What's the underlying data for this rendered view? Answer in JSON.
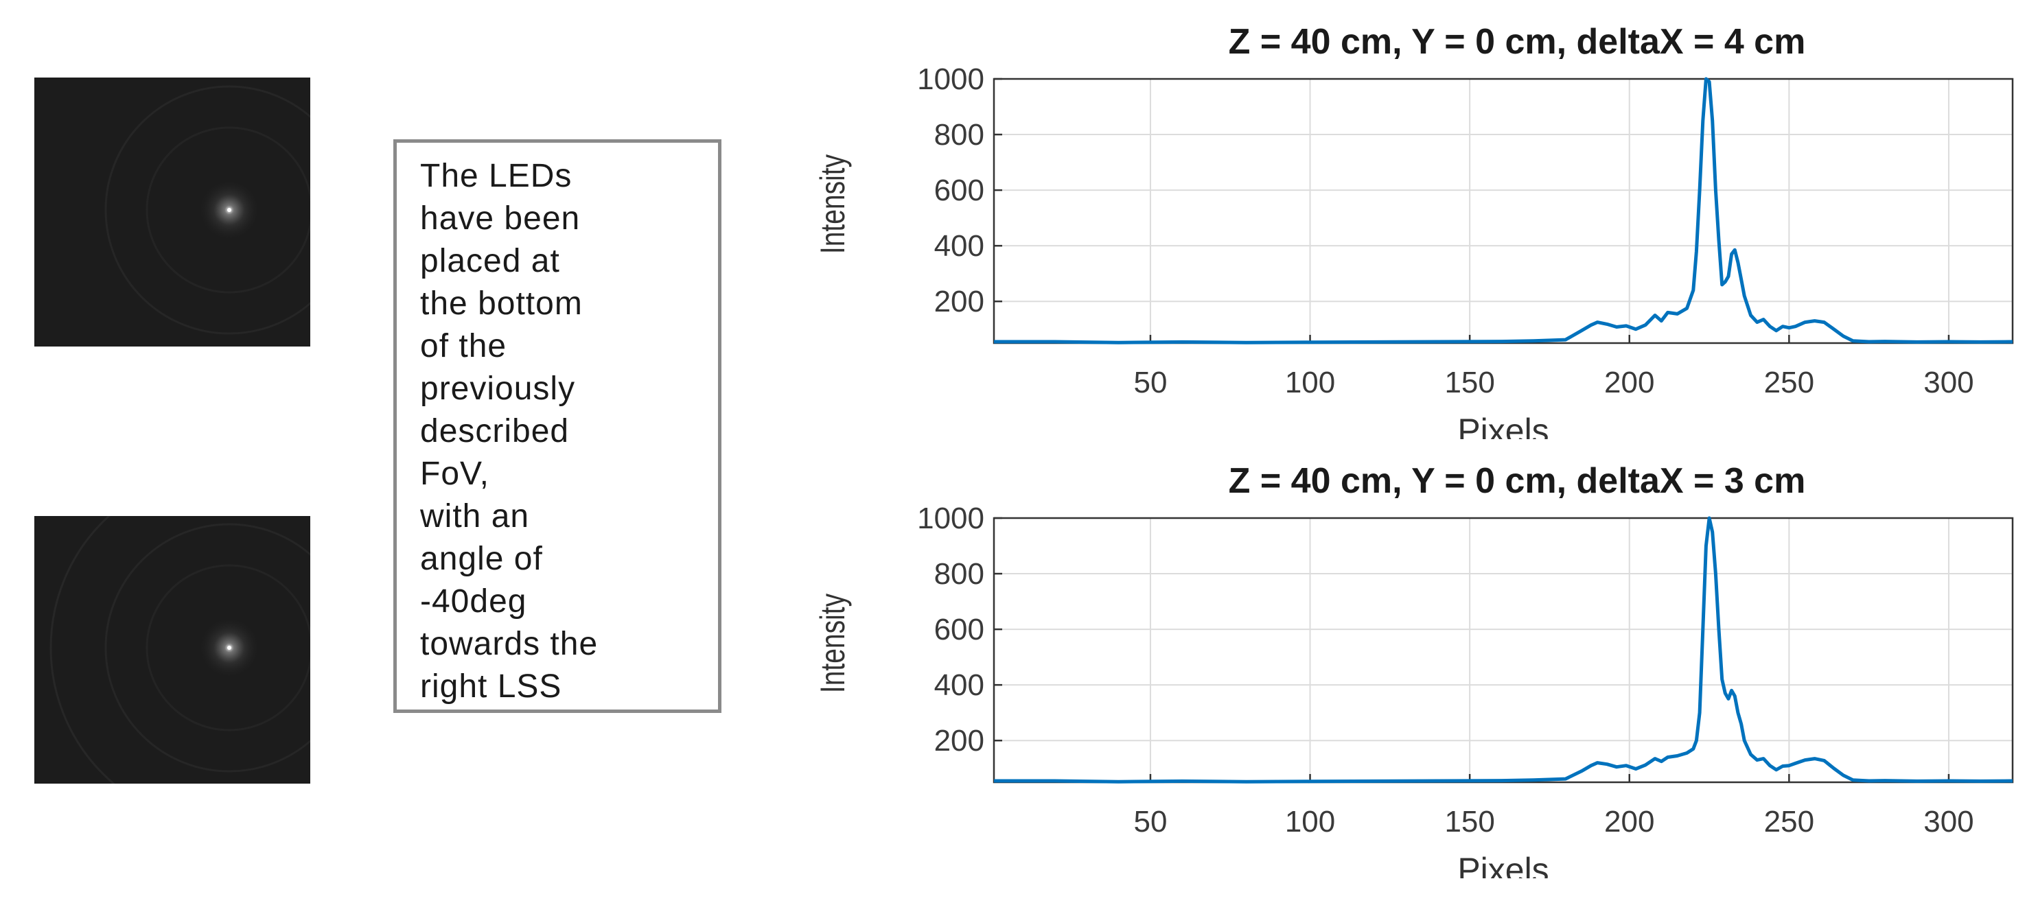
{
  "note": {
    "text": "The LEDs\nhave been\nplaced at\nthe bottom\nof the\npreviously\ndescribed\nFoV,\nwith an\nangle of\n-40deg\ntowards the\nright LSS"
  },
  "colors": {
    "series": "#0072BD",
    "image_bg": "#1c1c1c"
  },
  "chart_data": [
    {
      "type": "line",
      "title": "Z = 40 cm, Y = 0 cm, deltaX = 4 cm",
      "xlabel": "Pixels",
      "ylabel": "Intensity",
      "xlim": [
        1,
        320
      ],
      "ylim": [
        50,
        1000
      ],
      "xticks": [
        50,
        100,
        150,
        200,
        250,
        300
      ],
      "yticks": [
        200,
        400,
        600,
        800,
        1000
      ],
      "grid": true,
      "series": [
        {
          "x": [
            1,
            20,
            40,
            60,
            80,
            100,
            120,
            140,
            160,
            170,
            180,
            185,
            188,
            190,
            193,
            196,
            199,
            202,
            205,
            208,
            210,
            212,
            215,
            218,
            220,
            221,
            222,
            223,
            224,
            225,
            226,
            227,
            228,
            229,
            230,
            231,
            232,
            233,
            234,
            235,
            236,
            238,
            240,
            242,
            244,
            246,
            248,
            250,
            252,
            255,
            258,
            261,
            264,
            267,
            270,
            275,
            280,
            290,
            300,
            310,
            320
          ],
          "y": [
            55,
            55,
            52,
            54,
            52,
            53,
            54,
            55,
            56,
            58,
            62,
            95,
            115,
            125,
            118,
            108,
            112,
            100,
            115,
            150,
            130,
            160,
            155,
            175,
            240,
            380,
            600,
            850,
            1000,
            990,
            850,
            600,
            420,
            260,
            270,
            290,
            370,
            385,
            340,
            280,
            220,
            150,
            125,
            135,
            110,
            95,
            110,
            105,
            110,
            125,
            130,
            125,
            100,
            75,
            58,
            55,
            56,
            54,
            55,
            54,
            55
          ]
        }
      ]
    },
    {
      "type": "line",
      "title": "Z = 40 cm, Y = 0 cm, deltaX = 3 cm",
      "xlabel": "Pixels",
      "ylabel": "Intensity",
      "xlim": [
        1,
        320
      ],
      "ylim": [
        50,
        1000
      ],
      "xticks": [
        50,
        100,
        150,
        200,
        250,
        300
      ],
      "yticks": [
        200,
        400,
        600,
        800,
        1000
      ],
      "grid": true,
      "series": [
        {
          "x": [
            1,
            20,
            40,
            60,
            80,
            100,
            120,
            140,
            160,
            170,
            180,
            185,
            188,
            190,
            193,
            196,
            199,
            202,
            205,
            208,
            210,
            212,
            215,
            218,
            220,
            221,
            222,
            223,
            224,
            225,
            226,
            227,
            228,
            229,
            230,
            231,
            232,
            233,
            234,
            235,
            236,
            238,
            240,
            242,
            244,
            246,
            248,
            250,
            252,
            255,
            258,
            261,
            264,
            267,
            270,
            275,
            280,
            290,
            300,
            310,
            320
          ],
          "y": [
            55,
            55,
            52,
            54,
            52,
            53,
            54,
            55,
            56,
            58,
            62,
            90,
            110,
            120,
            115,
            105,
            110,
            98,
            112,
            135,
            125,
            140,
            145,
            155,
            170,
            200,
            300,
            600,
            900,
            1000,
            950,
            800,
            600,
            420,
            370,
            350,
            380,
            360,
            300,
            260,
            200,
            150,
            130,
            135,
            110,
            95,
            108,
            110,
            118,
            130,
            135,
            128,
            100,
            75,
            58,
            55,
            56,
            54,
            55,
            54,
            55
          ]
        }
      ]
    }
  ]
}
